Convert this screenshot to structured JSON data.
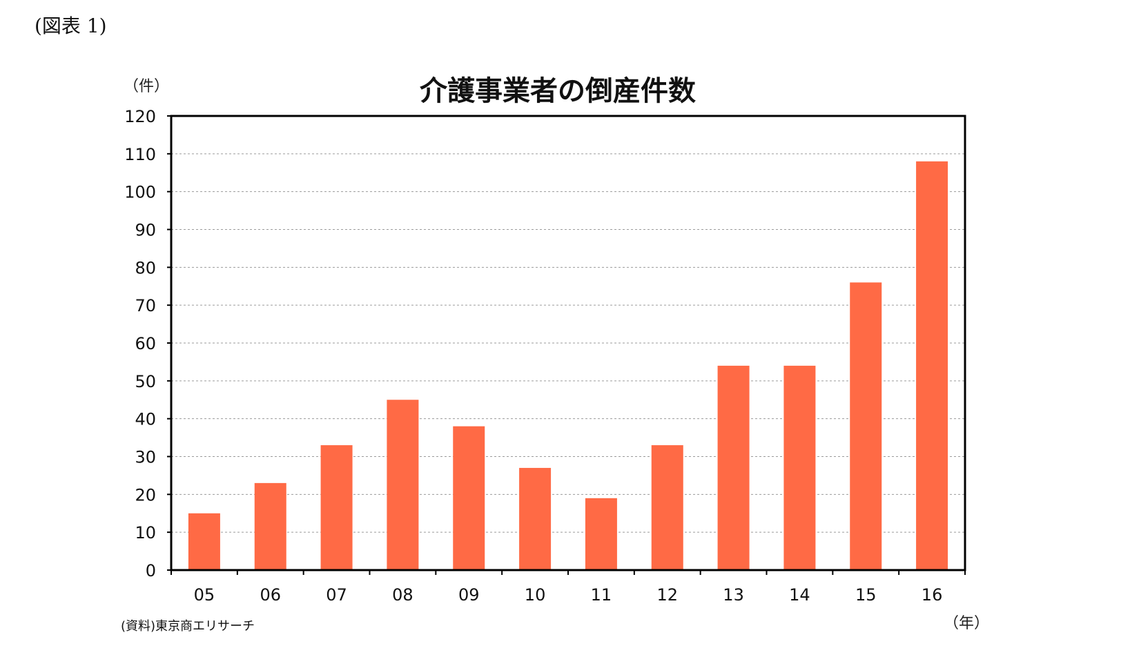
{
  "figure_label": "(図表 1)",
  "source": "(資料)東京商エリサーチ",
  "colors": {
    "bar": "#FF6A45",
    "gridline": "#9a9a9a",
    "axis": "#000000"
  },
  "chart_data": {
    "type": "bar",
    "title": "介護事業者の倒産件数",
    "ylabel": "（件）",
    "xlabel": "（年）",
    "categories": [
      "05",
      "06",
      "07",
      "08",
      "09",
      "10",
      "11",
      "12",
      "13",
      "14",
      "15",
      "16"
    ],
    "values": [
      15,
      23,
      33,
      45,
      38,
      27,
      19,
      33,
      54,
      54,
      76,
      108
    ],
    "ylim": [
      0,
      120
    ],
    "yticks": [
      0,
      10,
      20,
      30,
      40,
      50,
      60,
      70,
      80,
      90,
      100,
      110,
      120
    ],
    "grid": true,
    "legend": "none"
  }
}
